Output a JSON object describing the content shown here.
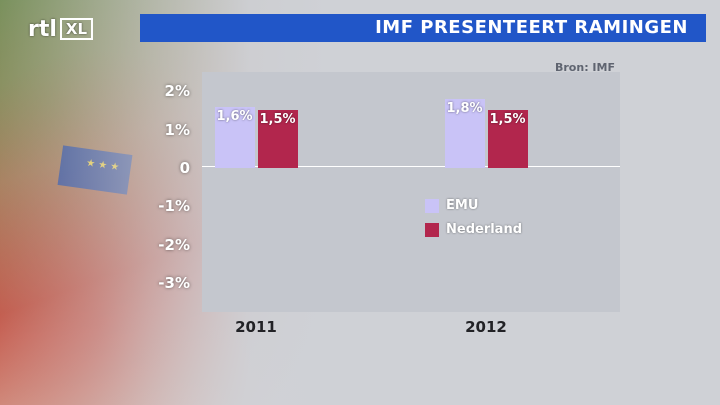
{
  "logo": {
    "brand": "rtl",
    "suffix": "XL"
  },
  "header": {
    "title": "IMF PRESENTEERT RAMINGEN"
  },
  "source": "Bron: IMF",
  "chart_data": {
    "type": "bar",
    "title": "IMF PRESENTEERT RAMINGEN",
    "categories": [
      "2011",
      "2012"
    ],
    "series": [
      {
        "name": "EMU",
        "values": [
          1.6,
          1.8
        ],
        "labels": [
          "1,6%",
          "1,8%"
        ],
        "color": "#c9c3f7"
      },
      {
        "name": "Nederland",
        "values": [
          1.5,
          1.5
        ],
        "labels": [
          "1,5%",
          "1,5%"
        ],
        "color": "#b2264d"
      }
    ],
    "yticks": [
      "2%",
      "1%",
      "0",
      "-1%",
      "-2%",
      "-3%"
    ],
    "ylim": [
      -3.75,
      2.5
    ],
    "legend_position": "center"
  }
}
